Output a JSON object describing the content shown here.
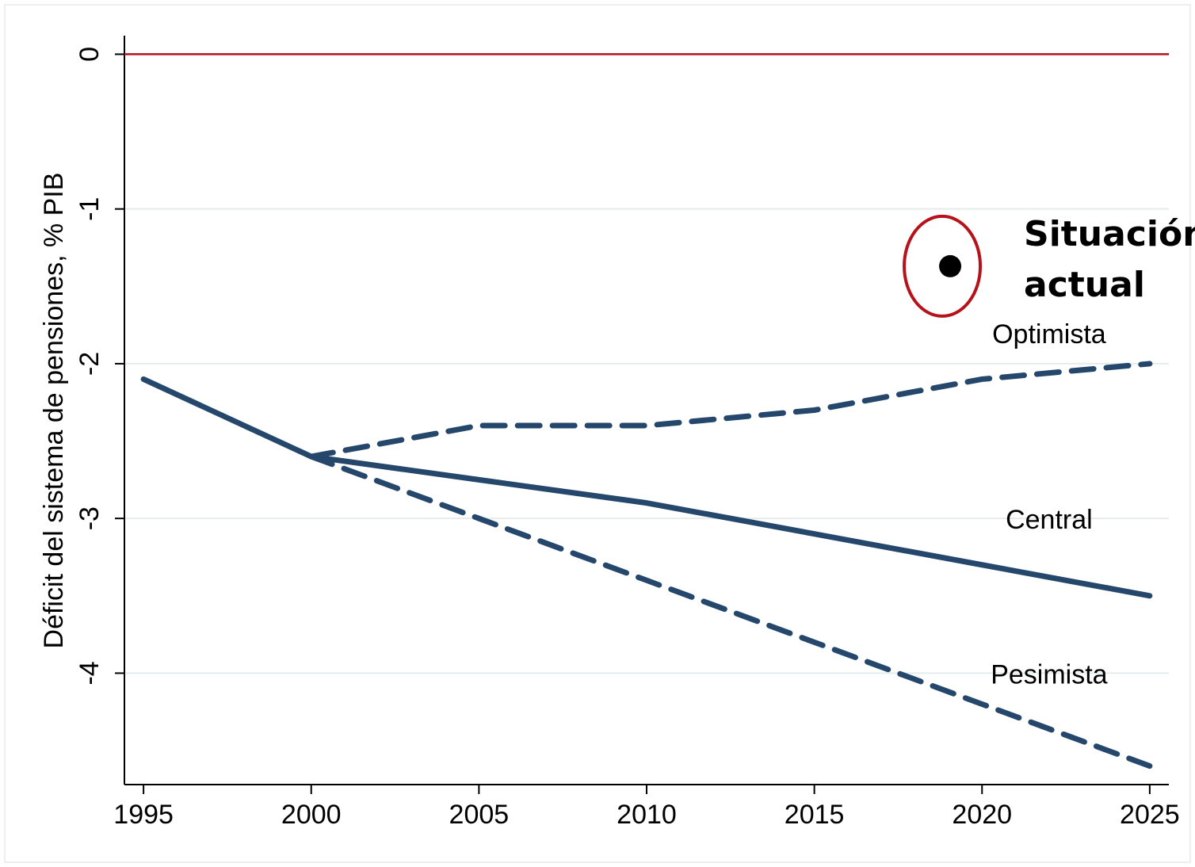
{
  "chart_data": {
    "type": "line",
    "y_label": "Déficit del sistema de pensiones, % PIB",
    "x": [
      1995,
      2000,
      2005,
      2010,
      2015,
      2020,
      2025
    ],
    "series": [
      {
        "name": "Central",
        "color": "#24476b",
        "style": "solid",
        "values": [
          -2.1,
          -2.6,
          -2.75,
          -2.9,
          -3.1,
          -3.3,
          -3.5
        ],
        "label_x": 2022,
        "label_y": -3.02
      },
      {
        "name": "Optimista",
        "color": "#24476b",
        "style": "dashed",
        "values": [
          null,
          -2.6,
          -2.4,
          -2.4,
          -2.3,
          -2.1,
          -2.0
        ],
        "label_x": 2022,
        "label_y": -1.82
      },
      {
        "name": "Pesimista",
        "color": "#24476b",
        "style": "dashed",
        "values": [
          null,
          -2.6,
          -3.0,
          -3.4,
          -3.8,
          -4.2,
          -4.6
        ],
        "label_x": 2022,
        "label_y": -4.02
      }
    ],
    "point": {
      "x": 2019.05,
      "y": -1.37,
      "color": "#000000"
    },
    "annotation": {
      "lines": [
        "Situación",
        "actual"
      ],
      "color": "#b5121b"
    },
    "reference_line": {
      "y": 0,
      "color": "#b5121b"
    },
    "xlim": [
      1994.43,
      2025.57
    ],
    "ylim": [
      -4.72,
      0.12
    ],
    "xticks": [
      1995,
      2000,
      2005,
      2010,
      2015,
      2020,
      2025
    ],
    "yticks": [
      0,
      -1,
      -2,
      -3,
      -4
    ],
    "grid": true
  }
}
